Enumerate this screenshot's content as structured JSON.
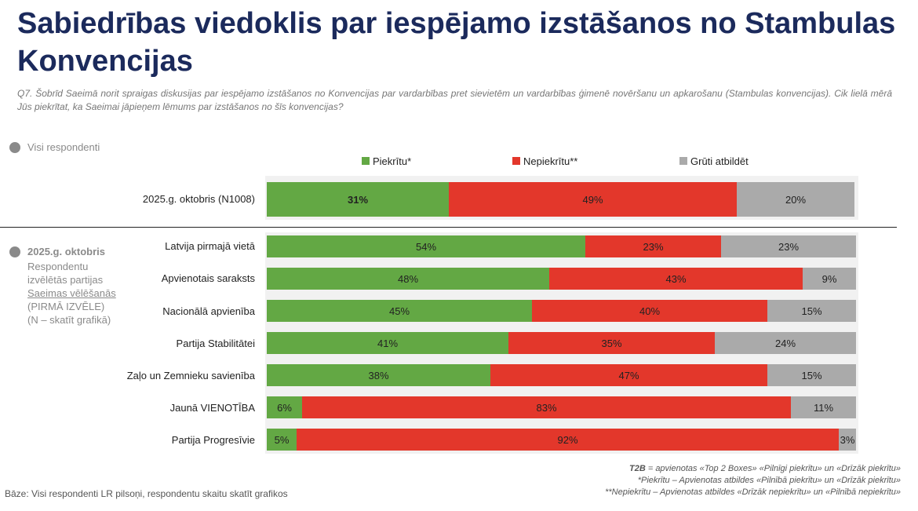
{
  "title": "Sabiedrības viedoklis par iespējamo izstāšanos no Stambulas Konvencijas",
  "question": "Q7. Šobrīd Saeimā norit spraigas diskusijas par iespējamo izstāšanos no Konvencijas par vardarbības pret sievietēm un vardarbības ģimenē novēršanu un apkarošanu (Stambulas konvencijas). Cik lielā mērā Jūs piekrītat, ka Saeimai jāpieņem lēmums par izstāšanos no šīs konvencijas?",
  "all_respondents_label": "Visi respondenti",
  "party_block": {
    "heading": "2025.g. oktobris",
    "line1": "Respondentu",
    "line2": "izvēlētās partijas",
    "line3": "Saeimas vēlēšanās",
    "line4": "(PIRMĀ IZVĒLE)",
    "line5": "(N – skatīt grafikā)"
  },
  "colors": {
    "agree": "#63a844",
    "disagree": "#e3372b",
    "hard": "#aaaaaa"
  },
  "chart_data": {
    "type": "bar",
    "orientation": "horizontal",
    "stacked": true,
    "unit": "%",
    "legend": [
      "Piekrītu*",
      "Nepiekrītu**",
      "Grūti atbildēt"
    ],
    "legend_position": "top",
    "total": {
      "category": "2025.g. oktobris (N1008)",
      "values": [
        31,
        49,
        20
      ],
      "labels": [
        "31%",
        "49%",
        "20%"
      ]
    },
    "categories": [
      "Latvija pirmajā vietā",
      "Apvienotais saraksts",
      "Nacionālā apvienība",
      "Partija Stabilitātei",
      "Zaļo un Zemnieku savienība",
      "Jaunā VIENOTĪBA",
      "Partija Progresīvie"
    ],
    "series": [
      {
        "name": "Piekrītu*",
        "values": [
          54,
          48,
          45,
          41,
          38,
          6,
          5
        ],
        "labels": [
          "54%",
          "48%",
          "45%",
          "41%",
          "38%",
          "6%",
          "5%"
        ]
      },
      {
        "name": "Nepiekrītu**",
        "values": [
          23,
          43,
          40,
          35,
          47,
          83,
          92
        ],
        "labels": [
          "23%",
          "43%",
          "40%",
          "35%",
          "47%",
          "83%",
          "92%"
        ]
      },
      {
        "name": "Grūti atbildēt",
        "values": [
          23,
          9,
          15,
          24,
          15,
          11,
          3
        ],
        "labels": [
          "23%",
          "9%",
          "15%",
          "24%",
          "15%",
          "11%",
          "3%"
        ]
      }
    ]
  },
  "base_note": "Bāze: Visi respondenti LR pilsoņi, respondentu skaitu skatīt grafikos",
  "notes": {
    "t2b_key": "T2B",
    "t2b_text": " = apvienotas «Top 2 Boxes» «Pilnīgi piekrītu» un «Drīzāk piekrītu»",
    "agree_note": "*Piekrītu – Apvienotas atbildes «Pilnībā piekrītu» un «Drīzāk piekrītu»",
    "disagree_note": "**Nepiekrītu – Apvienotas atbildes «Drīzāk nepiekrītu» un «Pilnībā nepiekrītu»"
  }
}
